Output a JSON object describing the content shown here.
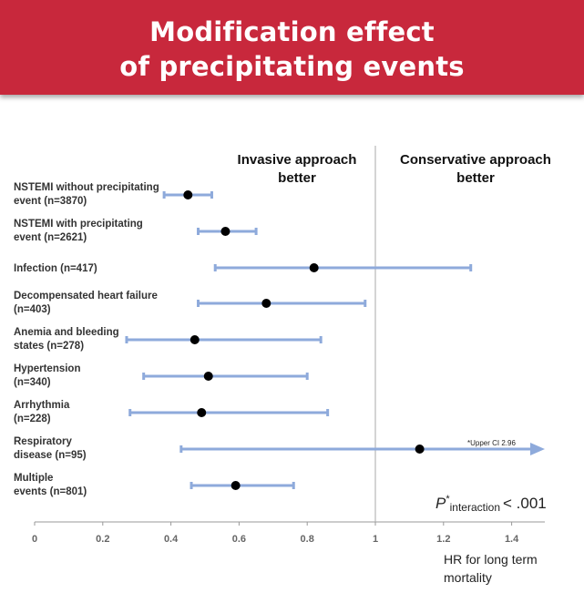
{
  "title_lines": [
    "Modification effect",
    "of precipitating events"
  ],
  "chart_data": {
    "type": "forest",
    "xlim": [
      0,
      1.6
    ],
    "x_ticks": [
      0,
      0.2,
      0.4,
      0.6,
      0.8,
      1,
      1.2,
      1.4
    ],
    "x_tick_labels": [
      "0",
      "0.2",
      "0.4",
      "0.6",
      "0.8",
      "1",
      "1.2",
      "1.4"
    ],
    "xlabel_lines": [
      "HR for long term",
      "mortality"
    ],
    "reference_line": 1,
    "left_region_label": [
      "Invasive approach",
      "better"
    ],
    "right_region_label": [
      "Conservative approach",
      "better"
    ],
    "rows": [
      {
        "label_lines": [
          "NSTEMI without precipitating",
          "event (n=3870)"
        ],
        "hr": 0.45,
        "ci_low": 0.38,
        "ci_high": 0.52
      },
      {
        "label_lines": [
          "NSTEMI with precipitating",
          "event (n=2621)"
        ],
        "hr": 0.56,
        "ci_low": 0.48,
        "ci_high": 0.65
      },
      {
        "label_lines": [
          "Infection (n=417)"
        ],
        "hr": 0.82,
        "ci_low": 0.53,
        "ci_high": 1.28
      },
      {
        "label_lines": [
          "Decompensated heart failure",
          "(n=403)"
        ],
        "hr": 0.68,
        "ci_low": 0.48,
        "ci_high": 0.97
      },
      {
        "label_lines": [
          "Anemia and bleeding",
          "states (n=278)"
        ],
        "hr": 0.47,
        "ci_low": 0.27,
        "ci_high": 0.84
      },
      {
        "label_lines": [
          "Hypertension",
          "(n=340)"
        ],
        "hr": 0.51,
        "ci_low": 0.32,
        "ci_high": 0.8
      },
      {
        "label_lines": [
          "Arrhythmia",
          "(n=228)"
        ],
        "hr": 0.49,
        "ci_low": 0.28,
        "ci_high": 0.86
      },
      {
        "label_lines": [
          "Respiratory",
          "disease (n=95)"
        ],
        "hr": 1.13,
        "ci_low": 0.43,
        "ci_high": 2.96,
        "truncated": true
      },
      {
        "label_lines": [
          "Multiple",
          "events (n=801)"
        ],
        "hr": 0.59,
        "ci_low": 0.46,
        "ci_high": 0.76
      }
    ],
    "annotation": "*Upper CI 2.96",
    "p_value": {
      "symbol": "P",
      "star": "*",
      "subscript": "interaction",
      "text": "< .001"
    },
    "colors": {
      "ci": "#8eaadb",
      "point": "#000000",
      "reference": "#aaaaaa",
      "axis": "#999999",
      "banner": "#c8283c"
    }
  }
}
